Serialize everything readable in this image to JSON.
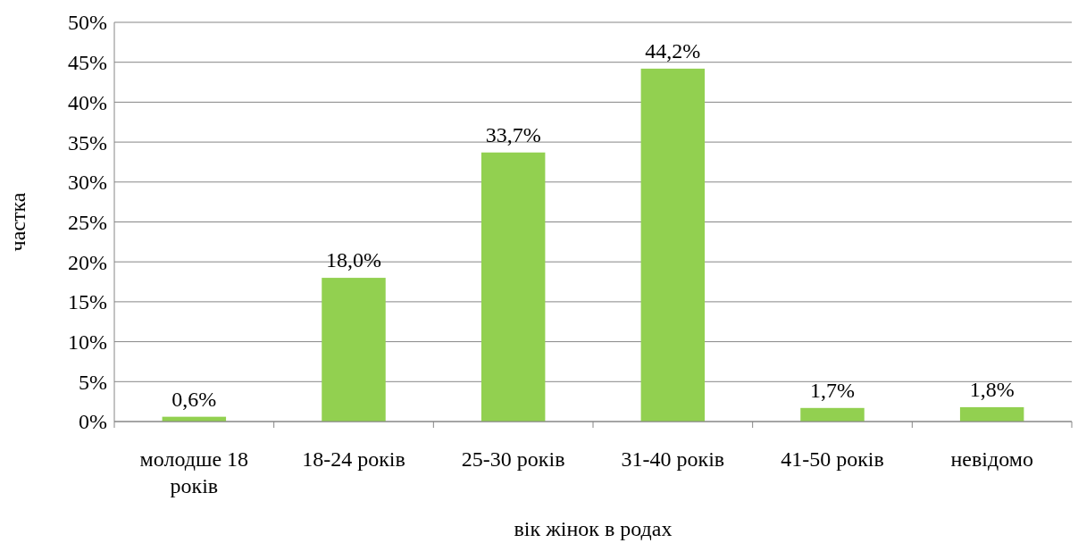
{
  "chart_data": {
    "type": "bar",
    "xlabel": "вік жінок в родах",
    "ylabel": "частка",
    "categories": [
      "молодше 18 років",
      "18-24 років",
      "25-30 років",
      "31-40 років",
      "41-50 років",
      "невідомо"
    ],
    "values": [
      0.6,
      18.0,
      33.7,
      44.2,
      1.7,
      1.8
    ],
    "value_labels": [
      "0,6%",
      "18,0%",
      "33,7%",
      "44,2%",
      "1,7%",
      "1,8%"
    ],
    "color": "#92d050",
    "ylim": [
      0,
      50
    ],
    "yticks": [
      {
        "value": 0,
        "label": "0%"
      },
      {
        "value": 5,
        "label": "5%"
      },
      {
        "value": 10,
        "label": "10%"
      },
      {
        "value": 15,
        "label": "15%"
      },
      {
        "value": 20,
        "label": "20%"
      },
      {
        "value": 25,
        "label": "25%"
      },
      {
        "value": 30,
        "label": "30%"
      },
      {
        "value": 35,
        "label": "35%"
      },
      {
        "value": 40,
        "label": "40%"
      },
      {
        "value": 45,
        "label": "45%"
      },
      {
        "value": 50,
        "label": "50%"
      }
    ],
    "grid": "y"
  }
}
